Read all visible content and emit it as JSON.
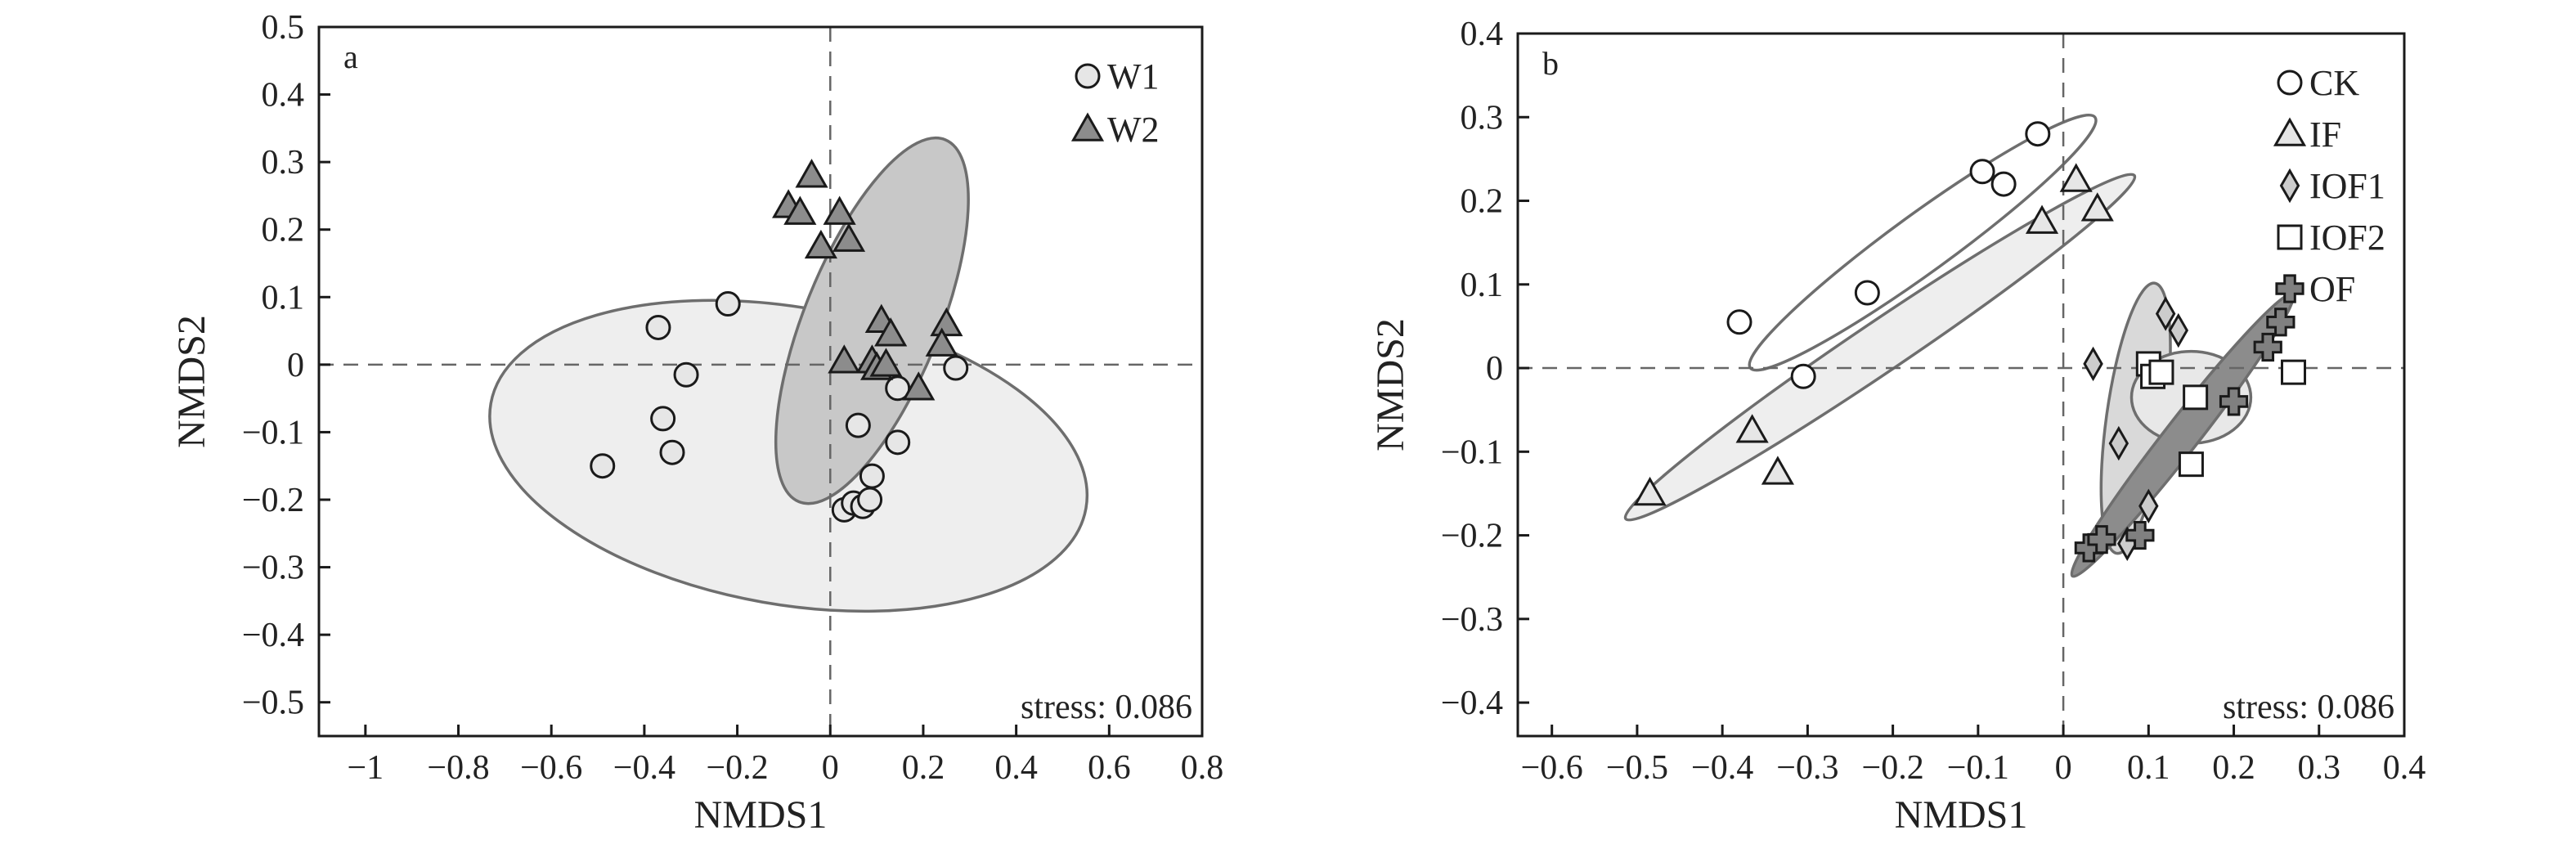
{
  "chart_data": [
    {
      "type": "scatter",
      "panel_label": "a",
      "xlabel": "NMDS1",
      "ylabel": "NMDS2",
      "xlim": [
        -1.1,
        0.8
      ],
      "ylim": [
        -0.55,
        0.5
      ],
      "xticks": [
        -1,
        -0.8,
        -0.6,
        -0.4,
        -0.2,
        0,
        0.2,
        0.4,
        0.6,
        0.8
      ],
      "xtick_labels": [
        "−1",
        "−0.8",
        "−0.6",
        "−0.4",
        "−0.2",
        "0",
        "0.2",
        "0.4",
        "0.6",
        "0.8"
      ],
      "yticks": [
        0.5,
        0.4,
        0.3,
        0.2,
        0.1,
        0,
        -0.1,
        -0.2,
        -0.3,
        -0.4,
        -0.5
      ],
      "ytick_labels": [
        "0.5",
        "0.4",
        "0.3",
        "0.2",
        "0.1",
        "0",
        "−0.1",
        "−0.2",
        "−0.3",
        "−0.4",
        "−0.5"
      ],
      "annotation": "stress: 0.086",
      "grid": false,
      "legend_position": "top-right",
      "series": [
        {
          "name": "W1",
          "marker": "circle",
          "color": "#e6e6e6",
          "points": [
            [
              -0.49,
              -0.15
            ],
            [
              -0.37,
              0.055
            ],
            [
              -0.36,
              -0.08
            ],
            [
              -0.34,
              -0.13
            ],
            [
              -0.31,
              -0.015
            ],
            [
              -0.22,
              0.09
            ],
            [
              0.03,
              -0.215
            ],
            [
              0.05,
              -0.205
            ],
            [
              0.07,
              -0.21
            ],
            [
              0.085,
              -0.2
            ],
            [
              0.06,
              -0.09
            ],
            [
              0.09,
              -0.165
            ],
            [
              0.145,
              -0.035
            ],
            [
              0.145,
              -0.115
            ],
            [
              0.27,
              -0.005
            ]
          ]
        },
        {
          "name": "W2",
          "marker": "triangle",
          "color": "#8c8c8c",
          "points": [
            [
              -0.04,
              0.28
            ],
            [
              -0.09,
              0.235
            ],
            [
              -0.065,
              0.225
            ],
            [
              -0.02,
              0.175
            ],
            [
              0.02,
              0.225
            ],
            [
              0.04,
              0.185
            ],
            [
              0.11,
              0.065
            ],
            [
              0.13,
              0.045
            ],
            [
              0.25,
              0.06
            ],
            [
              0.24,
              0.03
            ],
            [
              0.03,
              0.005
            ],
            [
              0.09,
              0.005
            ],
            [
              0.1,
              -0.005
            ],
            [
              0.12,
              0.0
            ],
            [
              0.19,
              -0.035
            ]
          ]
        }
      ],
      "ellipses": [
        {
          "series": "W1",
          "cx": -0.09,
          "cy": -0.135,
          "rx": 0.65,
          "ry": 0.22,
          "angle_deg": -10,
          "fill": "#eeeeee"
        },
        {
          "series": "W2",
          "cx": 0.09,
          "cy": 0.065,
          "rx": 0.42,
          "ry": 0.1,
          "angle_deg": 68,
          "fill": "#c8c8c8"
        }
      ]
    },
    {
      "type": "scatter",
      "panel_label": "b",
      "xlabel": "NMDS1",
      "ylabel": "NMDS2",
      "xlim": [
        -0.64,
        0.4
      ],
      "ylim": [
        -0.44,
        0.4
      ],
      "xticks": [
        -0.6,
        -0.5,
        -0.4,
        -0.3,
        -0.2,
        -0.1,
        0,
        0.1,
        0.2,
        0.3,
        0.4
      ],
      "xtick_labels": [
        "−0.6",
        "−0.5",
        "−0.4",
        "−0.3",
        "−0.2",
        "−0.1",
        "0",
        "0.1",
        "0.2",
        "0.3",
        "0.4"
      ],
      "yticks": [
        0.4,
        0.3,
        0.2,
        0.1,
        0,
        -0.1,
        -0.2,
        -0.3,
        -0.4
      ],
      "ytick_labels": [
        "0.4",
        "0.3",
        "0.2",
        "0.1",
        "0",
        "−0.1",
        "−0.2",
        "−0.3",
        "−0.4"
      ],
      "annotation": "stress: 0.086",
      "grid": false,
      "legend_position": "top-right",
      "series": [
        {
          "name": "CK",
          "marker": "circle",
          "color": "#ffffff",
          "points": [
            [
              -0.38,
              0.055
            ],
            [
              -0.305,
              -0.01
            ],
            [
              -0.23,
              0.09
            ],
            [
              -0.095,
              0.235
            ],
            [
              -0.07,
              0.22
            ],
            [
              -0.03,
              0.28
            ]
          ]
        },
        {
          "name": "IF",
          "marker": "triangle",
          "color": "#e6e6e6",
          "points": [
            [
              -0.485,
              -0.15
            ],
            [
              -0.365,
              -0.075
            ],
            [
              -0.335,
              -0.125
            ],
            [
              -0.025,
              0.175
            ],
            [
              0.015,
              0.225
            ],
            [
              0.04,
              0.19
            ]
          ]
        },
        {
          "name": "IOF1",
          "marker": "diamond",
          "color": "#cccccc",
          "points": [
            [
              0.035,
              0.005
            ],
            [
              0.065,
              -0.09
            ],
            [
              0.12,
              0.065
            ],
            [
              0.135,
              0.045
            ],
            [
              0.1,
              -0.165
            ],
            [
              0.075,
              -0.21
            ]
          ]
        },
        {
          "name": "IOF2",
          "marker": "square",
          "color": "#ffffff",
          "points": [
            [
              0.1,
              0.005
            ],
            [
              0.105,
              -0.01
            ],
            [
              0.115,
              -0.005
            ],
            [
              0.155,
              -0.035
            ],
            [
              0.15,
              -0.115
            ],
            [
              0.27,
              -0.005
            ]
          ]
        },
        {
          "name": "OF",
          "marker": "cross",
          "color": "#808080",
          "points": [
            [
              0.03,
              -0.215
            ],
            [
              0.045,
              -0.205
            ],
            [
              0.09,
              -0.2
            ],
            [
              0.2,
              -0.04
            ],
            [
              0.24,
              0.025
            ],
            [
              0.255,
              0.055
            ]
          ]
        }
      ],
      "ellipses": [
        {
          "series": "CK",
          "cx": -0.165,
          "cy": 0.15,
          "rx": 0.25,
          "ry": 0.035,
          "angle_deg": 36,
          "fill": "#ffffff"
        },
        {
          "series": "IF",
          "cx": -0.215,
          "cy": 0.025,
          "rx": 0.36,
          "ry": 0.03,
          "angle_deg": 34,
          "fill": "#eeeeee"
        },
        {
          "series": "IOF1",
          "cx": 0.085,
          "cy": -0.06,
          "rx": 0.16,
          "ry": 0.035,
          "angle_deg": 82,
          "fill": "#d9d9d9"
        },
        {
          "series": "IOF2",
          "cx": 0.15,
          "cy": -0.035,
          "rx": 0.07,
          "ry": 0.055,
          "angle_deg": 0,
          "fill": "#e8e8e8"
        },
        {
          "series": "OF",
          "cx": 0.14,
          "cy": -0.08,
          "rx": 0.21,
          "ry": 0.02,
          "angle_deg": 52,
          "fill": "#8c8c8c"
        }
      ]
    }
  ]
}
